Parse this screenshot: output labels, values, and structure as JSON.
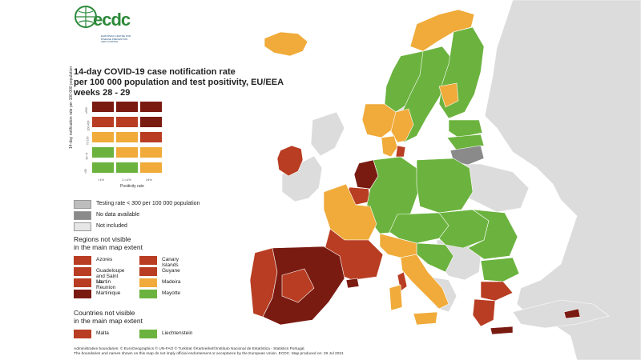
{
  "logo": {
    "text": "ecdc",
    "subtitle": "EUROPEAN CENTRE FOR DISEASE PREVENTION AND CONTROL"
  },
  "title": {
    "line1": "14-day COVID-19 case notification rate",
    "line2": "per 100 000 population and test positivity, EU/EEA",
    "line3": "weeks 28 - 29"
  },
  "matrix": {
    "y_axis_label": "14-day notification rate per 100 000 population",
    "x_axis_label": "Positivity rate",
    "y_ticks": [
      "≥500",
      "200-499",
      "75-199",
      "50-74",
      "<50"
    ],
    "x_ticks": [
      "<1%",
      "1-<4%",
      "≥4%"
    ],
    "grid_colors": [
      [
        "#7a1b12",
        "#7a1b12",
        "#7a1b12"
      ],
      [
        "#b83d22",
        "#b83d22",
        "#7a1b12"
      ],
      [
        "#f0ab3a",
        "#f0ab3a",
        "#b83d22"
      ],
      [
        "#6bb33e",
        "#f0ab3a",
        "#f0ab3a"
      ],
      [
        "#6bb33e",
        "#6bb33e",
        "#f0ab3a"
      ]
    ]
  },
  "legend": [
    {
      "label": "Testing rate < 300 per 100 000 population",
      "color": "#bdbdbd"
    },
    {
      "label": "No data available",
      "color": "#8a8a8a"
    },
    {
      "label": "Not included",
      "color": "#e6e6e6"
    }
  ],
  "regions_title": "Regions not visible\nin the main map extent",
  "regions": [
    {
      "label": "Azores",
      "color": "#b83d22"
    },
    {
      "label": "Canary Islands",
      "color": "#b83d22"
    },
    {
      "label": "Guadeloupe\nand Saint Martin",
      "color": "#b83d22"
    },
    {
      "label": "Guyane",
      "color": "#b83d22"
    },
    {
      "label": "La Reunion",
      "color": "#b83d22"
    },
    {
      "label": "Madeira",
      "color": "#f0ab3a"
    },
    {
      "label": "Martinique",
      "color": "#7a1b12"
    },
    {
      "label": "Mayotte",
      "color": "#6bb33e"
    }
  ],
  "countries_title": "Countries not visible\nin the main map extent",
  "countries": [
    {
      "label": "Malta",
      "color": "#b83d22"
    },
    {
      "label": "Liechtenstein",
      "color": "#6bb33e"
    }
  ],
  "footer": {
    "line1": "Administrative boundaries: © EuroGeographics © UN-FAO © Turkstat ©Kartverket©Instituto Nacional de Estatística - Statistics Portugal.",
    "line2": "The boundaries and names shown on this map do not imply official endorsement or acceptance by the European Union. ECDC. Map produced on: 28 Jul 2021"
  },
  "colors": {
    "dark_red": "#7a1b12",
    "red": "#b83d22",
    "orange": "#f0ab3a",
    "green": "#6bb33e",
    "grey_low_testing": "#bdbdbd",
    "grey_no_data": "#8a8a8a",
    "not_included": "#e6e6e6"
  }
}
